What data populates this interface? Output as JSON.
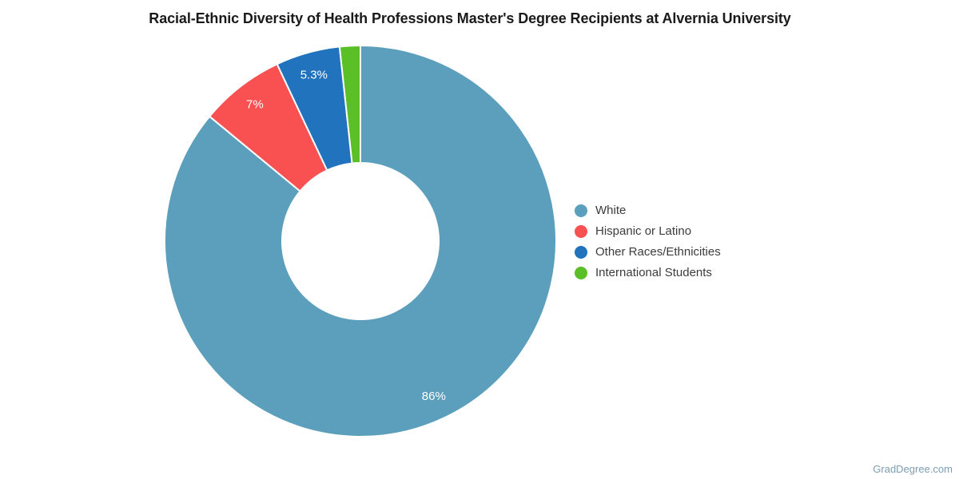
{
  "chart_data": {
    "type": "pie",
    "subtype": "donut",
    "title": "Racial-Ethnic Diversity of Health Professions Master's Degree Recipients at Alvernia University",
    "direction": "clockwise",
    "start_angle_deg": 0,
    "inner_radius_ratio": 0.4,
    "legend_position": "right",
    "slices": [
      {
        "label": "White",
        "value": 86,
        "data_label": "86%",
        "color": "#5B9FBC"
      },
      {
        "label": "Hispanic or Latino",
        "value": 7,
        "data_label": "7%",
        "color": "#F95152"
      },
      {
        "label": "Other Races/Ethnicities",
        "value": 5.3,
        "data_label": "5.3%",
        "color": "#2273BE"
      },
      {
        "label": "International Students",
        "value": 1.7,
        "data_label": "",
        "color": "#5BC027"
      }
    ]
  },
  "watermark": "GradDegree.com",
  "colors": {
    "background": "#FFFFFF",
    "title_text": "#1A1A1A",
    "legend_text": "#3C3C3C",
    "slice_label_text": "#FFFFFF",
    "slice_border": "#FFFFFF",
    "watermark_text": "#7C9DB2"
  }
}
